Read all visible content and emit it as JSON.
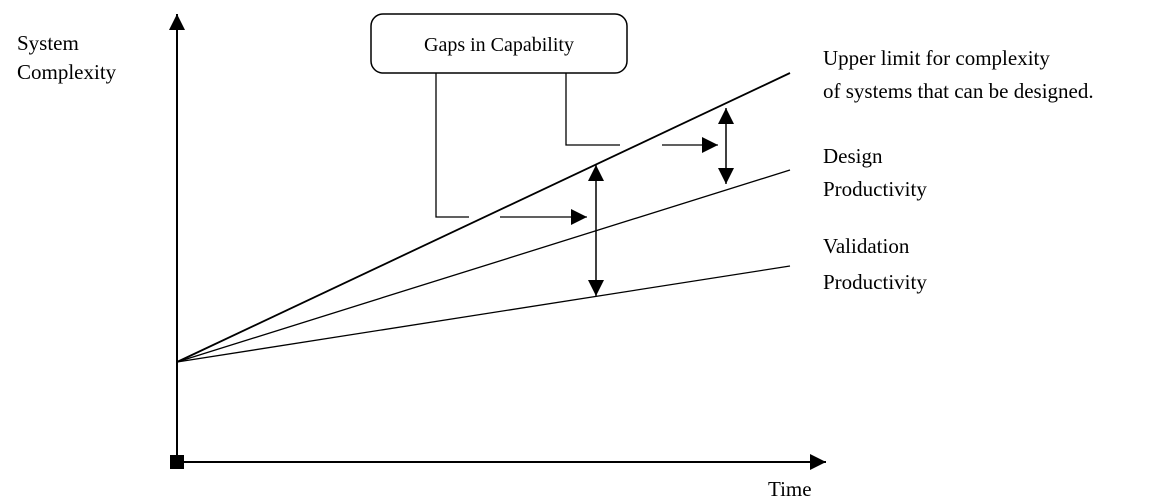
{
  "axes": {
    "y_label_line1": "System",
    "y_label_line2": "Complexity",
    "x_label": "Time"
  },
  "callout": {
    "text": "Gaps in Capability"
  },
  "lines": {
    "upper": {
      "line1": "Upper limit for complexity",
      "line2": "of systems that can be designed."
    },
    "design": {
      "line1": "Design",
      "line2": "Productivity"
    },
    "validation": {
      "line1": "Validation",
      "line2": "Productivity"
    }
  },
  "style": {
    "stroke": "#000000",
    "background": "#ffffff"
  }
}
